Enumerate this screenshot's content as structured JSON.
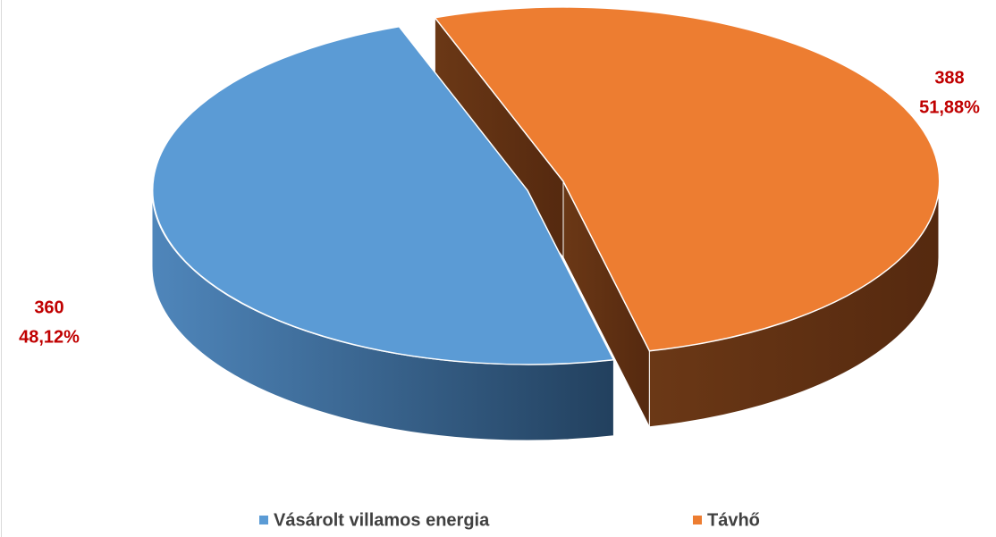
{
  "chart_data": {
    "type": "pie3d",
    "categories": [
      "Vásárolt villamos energia",
      "Távhő"
    ],
    "values": [
      360,
      388
    ],
    "percents": [
      {
        "value": 48.12,
        "label": "48,12%"
      },
      {
        "value": 51.88,
        "label": "51,88%"
      }
    ],
    "colors": [
      "#5b9bd5",
      "#ed7d31"
    ],
    "legend": "bottom"
  }
}
